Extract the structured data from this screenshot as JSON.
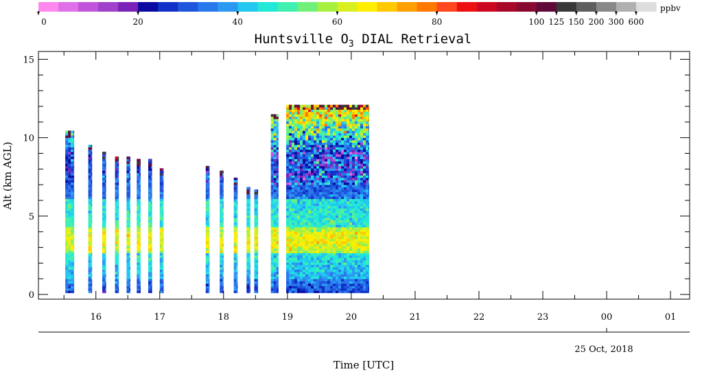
{
  "chart_data": {
    "type": "heatmap",
    "title": "Huntsville O",
    "title_subscript": "3",
    "title_suffix": " DIAL Retrieval",
    "xlabel": "Time [UTC]",
    "ylabel": "Alt (km AGL)",
    "date_label": "25 Oct, 2018",
    "x_tick_labels": [
      "16",
      "17",
      "18",
      "19",
      "20",
      "21",
      "22",
      "23",
      "00",
      "01"
    ],
    "x_ticks_hours": [
      16,
      17,
      18,
      19,
      20,
      21,
      22,
      23,
      24,
      25
    ],
    "xlim_hours": [
      15.1,
      25.3
    ],
    "y_tick_labels": [
      "0",
      "5",
      "10",
      "15"
    ],
    "y_ticks": [
      0,
      5,
      10,
      15
    ],
    "ylim": [
      -0.3,
      15.5
    ],
    "colorbar": {
      "unit": "ppbv",
      "tick_labels": [
        "0",
        "20",
        "40",
        "60",
        "80",
        "100",
        "125",
        "150",
        "200",
        "300",
        "600"
      ],
      "colors": [
        "#ff88ee",
        "#e070e8",
        "#c055dc",
        "#a040cc",
        "#7a22b8",
        "#0a0aa0",
        "#1030c8",
        "#1d55dc",
        "#2878ec",
        "#2c98f2",
        "#22c8f0",
        "#22e8d8",
        "#40f0b0",
        "#70f078",
        "#a8f040",
        "#d8f020",
        "#ffee00",
        "#ffc800",
        "#ffa000",
        "#ff7800",
        "#ff4820",
        "#ee1010",
        "#cc0820",
        "#a80828",
        "#880830",
        "#600838",
        "#383838",
        "#5e5e5e",
        "#888888",
        "#b0b0b0",
        "#dddddd"
      ]
    },
    "profiles": [
      {
        "start": 15.52,
        "end": 15.66,
        "top": 10.4
      },
      {
        "start": 15.88,
        "end": 15.94,
        "top": 9.5
      },
      {
        "start": 16.1,
        "end": 16.16,
        "top": 9.0
      },
      {
        "start": 16.3,
        "end": 16.36,
        "top": 8.8
      },
      {
        "start": 16.48,
        "end": 16.54,
        "top": 8.7
      },
      {
        "start": 16.64,
        "end": 16.7,
        "top": 8.6
      },
      {
        "start": 16.82,
        "end": 16.88,
        "top": 8.6
      },
      {
        "start": 17.0,
        "end": 17.06,
        "top": 8.0
      },
      {
        "start": 17.72,
        "end": 17.78,
        "top": 8.2
      },
      {
        "start": 17.94,
        "end": 18.0,
        "top": 7.9
      },
      {
        "start": 18.16,
        "end": 18.22,
        "top": 7.4
      },
      {
        "start": 18.36,
        "end": 18.42,
        "top": 6.8
      },
      {
        "start": 18.48,
        "end": 18.54,
        "top": 6.7
      },
      {
        "start": 18.74,
        "end": 18.86,
        "top": 11.5
      },
      {
        "start": 18.98,
        "end": 20.28,
        "top": 12.1
      }
    ]
  }
}
